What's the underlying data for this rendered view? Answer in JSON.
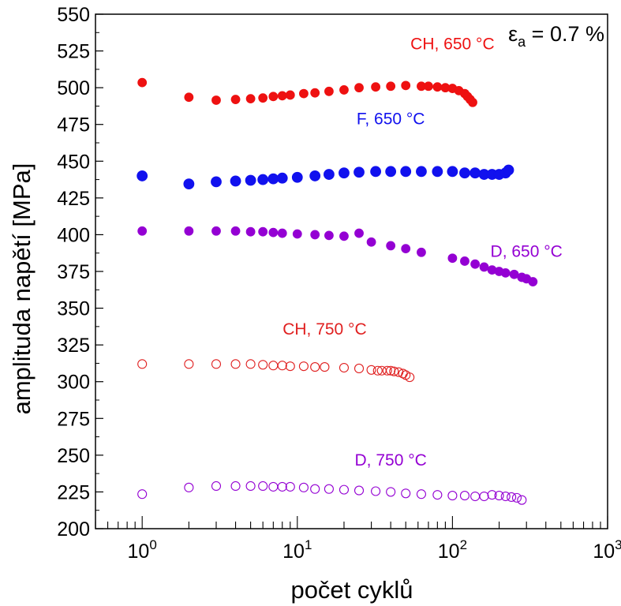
{
  "chart_data": {
    "type": "scatter",
    "x_scale": "log",
    "xlim": [
      0.5,
      1000
    ],
    "ylim": [
      200,
      550
    ],
    "xlabel": "počet cyklů",
    "ylabel": "amplituda napětí [MPa]",
    "annotation": {
      "symbol": "ε",
      "subscript": "a",
      "text": " = 0.7 %"
    },
    "yticks": [
      200,
      225,
      250,
      275,
      300,
      325,
      350,
      375,
      400,
      425,
      450,
      475,
      500,
      525,
      550
    ],
    "xticks": [
      {
        "value": 1,
        "base": "10",
        "exp": "0"
      },
      {
        "value": 10,
        "base": "10",
        "exp": "1"
      },
      {
        "value": 100,
        "base": "10",
        "exp": "2"
      },
      {
        "value": 1000,
        "base": "10",
        "exp": "3"
      }
    ],
    "grid": false,
    "series": [
      {
        "name": "CH, 650 °C",
        "color": "#ee1111",
        "filled": true,
        "marker_size": 5.5,
        "label_at": [
          100,
          526
        ],
        "points": [
          [
            1,
            503.5
          ],
          [
            2,
            493.5
          ],
          [
            3,
            491.5
          ],
          [
            4,
            492
          ],
          [
            5,
            492.5
          ],
          [
            6,
            493
          ],
          [
            7,
            494
          ],
          [
            8,
            494.5
          ],
          [
            9,
            495
          ],
          [
            11,
            496
          ],
          [
            13,
            496.5
          ],
          [
            16,
            497.5
          ],
          [
            20,
            498.5
          ],
          [
            25,
            500
          ],
          [
            32,
            500.5
          ],
          [
            40,
            501
          ],
          [
            50,
            501.5
          ],
          [
            63,
            501
          ],
          [
            70,
            501
          ],
          [
            80,
            500.5
          ],
          [
            90,
            500
          ],
          [
            100,
            499.5
          ],
          [
            110,
            498
          ],
          [
            120,
            496
          ],
          [
            125,
            494
          ],
          [
            130,
            492
          ],
          [
            135,
            490
          ]
        ]
      },
      {
        "name": "F, 650 °C",
        "color": "#1111ee",
        "filled": true,
        "marker_size": 6.5,
        "label_at": [
          40,
          475
        ],
        "points": [
          [
            1,
            440
          ],
          [
            2,
            434.5
          ],
          [
            3,
            436
          ],
          [
            4,
            436.5
          ],
          [
            5,
            437
          ],
          [
            6,
            437.5
          ],
          [
            7,
            438
          ],
          [
            8,
            438.5
          ],
          [
            10,
            439
          ],
          [
            13,
            440
          ],
          [
            16,
            441
          ],
          [
            20,
            442
          ],
          [
            25,
            442.5
          ],
          [
            32,
            443
          ],
          [
            40,
            443
          ],
          [
            50,
            443
          ],
          [
            63,
            443
          ],
          [
            80,
            443
          ],
          [
            100,
            443
          ],
          [
            120,
            442
          ],
          [
            140,
            442
          ],
          [
            160,
            441
          ],
          [
            180,
            441
          ],
          [
            200,
            441
          ],
          [
            220,
            442
          ],
          [
            230,
            444
          ]
        ]
      },
      {
        "name": "D, 650 °C",
        "color": "#9400d3",
        "filled": true,
        "marker_size": 5.5,
        "label_at": [
          300,
          385
        ],
        "points": [
          [
            1,
            402.5
          ],
          [
            2,
            402.5
          ],
          [
            3,
            402.5
          ],
          [
            4,
            402.5
          ],
          [
            5,
            402
          ],
          [
            6,
            402
          ],
          [
            7,
            401.5
          ],
          [
            8,
            401
          ],
          [
            10,
            400.5
          ],
          [
            13,
            400
          ],
          [
            16,
            399.5
          ],
          [
            20,
            399
          ],
          [
            25,
            401
          ],
          [
            30,
            395
          ],
          [
            40,
            392.5
          ],
          [
            50,
            390.5
          ],
          [
            63,
            388
          ],
          [
            100,
            384
          ],
          [
            120,
            382
          ],
          [
            140,
            380
          ],
          [
            160,
            378
          ],
          [
            180,
            376
          ],
          [
            200,
            375
          ],
          [
            220,
            374
          ],
          [
            250,
            373
          ],
          [
            280,
            371
          ],
          [
            300,
            370
          ],
          [
            330,
            368
          ]
        ]
      },
      {
        "name": "CH, 750 °C",
        "color": "#e02020",
        "filled": false,
        "marker_size": 5.5,
        "label_at": [
          15,
          332
        ],
        "points": [
          [
            1,
            312
          ],
          [
            2,
            312
          ],
          [
            3,
            312
          ],
          [
            4,
            312
          ],
          [
            5,
            312
          ],
          [
            6,
            311.5
          ],
          [
            7,
            311
          ],
          [
            8,
            311
          ],
          [
            9,
            310.5
          ],
          [
            11,
            310.5
          ],
          [
            13,
            310
          ],
          [
            15,
            310
          ],
          [
            20,
            309.5
          ],
          [
            25,
            309
          ],
          [
            30,
            308
          ],
          [
            33,
            307.5
          ],
          [
            35,
            307.5
          ],
          [
            38,
            307.5
          ],
          [
            40,
            307.5
          ],
          [
            42,
            307
          ],
          [
            45,
            306.5
          ],
          [
            48,
            305.5
          ],
          [
            50,
            304.5
          ],
          [
            53,
            303
          ]
        ]
      },
      {
        "name": "D, 750 °C",
        "color": "#9400d3",
        "filled": false,
        "marker_size": 5.5,
        "label_at": [
          40,
          243
        ],
        "points": [
          [
            1,
            223.5
          ],
          [
            2,
            228
          ],
          [
            3,
            229
          ],
          [
            4,
            229
          ],
          [
            5,
            229
          ],
          [
            6,
            229
          ],
          [
            7,
            228.5
          ],
          [
            8,
            228.5
          ],
          [
            9,
            228.5
          ],
          [
            11,
            228
          ],
          [
            13,
            227
          ],
          [
            16,
            227
          ],
          [
            20,
            226.5
          ],
          [
            25,
            226
          ],
          [
            32,
            225.5
          ],
          [
            40,
            225
          ],
          [
            50,
            224
          ],
          [
            63,
            223.5
          ],
          [
            80,
            223
          ],
          [
            100,
            222.5
          ],
          [
            120,
            222.5
          ],
          [
            140,
            222
          ],
          [
            160,
            222
          ],
          [
            180,
            223
          ],
          [
            200,
            222.5
          ],
          [
            220,
            222
          ],
          [
            240,
            221.5
          ],
          [
            260,
            221
          ],
          [
            280,
            219.5
          ]
        ]
      }
    ]
  }
}
